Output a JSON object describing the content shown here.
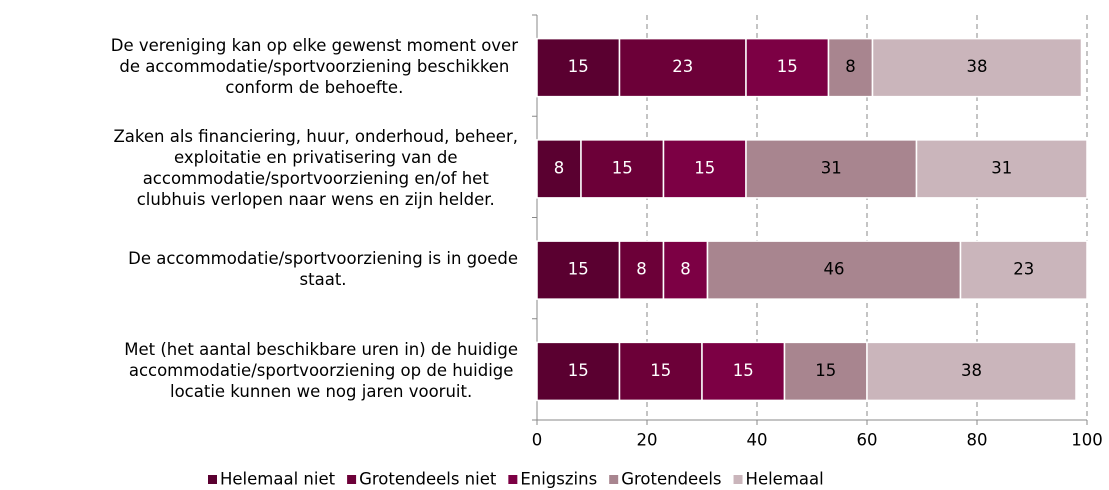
{
  "chart_data": {
    "type": "stacked-barh",
    "categories": [
      [
        "De vereniging kan op elke gewenst moment over",
        "de accommodatie/sportvoorziening beschikken",
        "conform de behoefte."
      ],
      [
        "Zaken als financiering, huur, onderhoud, beheer,",
        "exploitatie en privatisering van de",
        "accommodatie/sportvoorziening en/of het",
        "clubhuis verlopen naar wens en zijn helder."
      ],
      [
        "De accommodatie/sportvoorziening is in goede",
        "staat."
      ],
      [
        "Met (het aantal beschikbare uren in) de huidige",
        "accommodatie/sportvoorziening op de huidige",
        "locatie kunnen we nog jaren vooruit."
      ]
    ],
    "series": [
      {
        "name": "Helemaal niet",
        "color": "#5a0030",
        "values": [
          15,
          8,
          15,
          15
        ]
      },
      {
        "name": "Grotendeels niet",
        "color": "#6c0038",
        "values": [
          23,
          15,
          8,
          15
        ]
      },
      {
        "name": "Enigszins",
        "color": "#7c0044",
        "values": [
          15,
          15,
          8,
          15
        ]
      },
      {
        "name": "Grotendeels",
        "color": "#a8858f",
        "values": [
          8,
          31,
          46,
          15
        ]
      },
      {
        "name": "Helemaal",
        "color": "#cab5bb",
        "values": [
          38,
          31,
          23,
          38
        ]
      }
    ],
    "xlim": [
      0,
      100
    ],
    "xticks": [
      0,
      20,
      40,
      60,
      80,
      100
    ],
    "grid": true,
    "legend": "bottom"
  }
}
